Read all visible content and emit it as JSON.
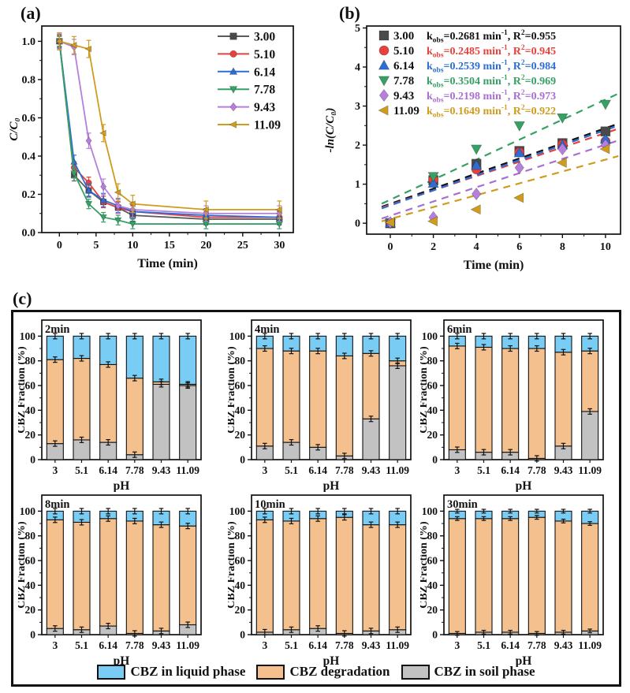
{
  "panels": {
    "a": {
      "label": "(a)"
    },
    "b": {
      "label": "(b)"
    },
    "c": {
      "label": "(c)"
    }
  },
  "legend": {
    "items": [
      {
        "label": "CBZ in liquid phase",
        "color": "#79CCF3"
      },
      {
        "label": "CBZ degradation",
        "color": "#F4C08D"
      },
      {
        "label": "CBZ in soil phase",
        "color": "#C2C2C2"
      }
    ]
  },
  "chart_data": [
    {
      "id": "panel_a",
      "type": "line",
      "xlabel": "Time (min)",
      "ylabel": "C/C₀",
      "xlim": [
        -2.4,
        31.9
      ],
      "ylim": [
        0,
        1.08
      ],
      "xticks": [
        0,
        5,
        10,
        15,
        20,
        25,
        30
      ],
      "xtick_labels": [
        "0",
        "5",
        "10",
        "15",
        "20",
        "25",
        "30"
      ],
      "yticks": [
        0.0,
        0.2,
        0.4,
        0.6,
        0.8,
        1.0
      ],
      "ytick_labels": [
        "0.0",
        "0.2",
        "0.4",
        "0.6",
        "0.8",
        "1.0"
      ],
      "legend_position": "top-right",
      "x": [
        0,
        2,
        4,
        6,
        8,
        10,
        20,
        30
      ],
      "series": [
        {
          "name": "3.00",
          "marker": "square",
          "color": "#4a4a4a",
          "line_color": "#5b5b5b",
          "err": 0.03,
          "values": [
            1.0,
            0.3,
            0.22,
            0.16,
            0.13,
            0.09,
            0.07,
            0.07
          ]
        },
        {
          "name": "5.10",
          "marker": "circle",
          "color": "#e8403c",
          "line_color": "#e8403c",
          "err": 0.03,
          "values": [
            1.0,
            0.34,
            0.26,
            0.16,
            0.13,
            0.11,
            0.08,
            0.08
          ]
        },
        {
          "name": "6.14",
          "marker": "triangle-up",
          "color": "#2e6ed4",
          "line_color": "#2e6ed4",
          "err": 0.035,
          "values": [
            1.0,
            0.37,
            0.22,
            0.17,
            0.14,
            0.11,
            0.09,
            0.08
          ]
        },
        {
          "name": "7.78",
          "marker": "triangle-down",
          "color": "#37a065",
          "line_color": "#37a065",
          "err": 0.025,
          "values": [
            1.0,
            0.31,
            0.15,
            0.08,
            0.065,
            0.045,
            0.045,
            0.045
          ]
        },
        {
          "name": "9.43",
          "marker": "diamond",
          "color": "#b77fdd",
          "line_color": "#b77fdd",
          "err": 0.04,
          "values": [
            1.0,
            0.97,
            0.48,
            0.24,
            0.14,
            0.12,
            0.1,
            0.1
          ]
        },
        {
          "name": "11.09",
          "marker": "triangle-left",
          "color": "#cf9c1e",
          "line_color": "#cf9c1e",
          "err": 0.045,
          "values": [
            1.0,
            0.98,
            0.96,
            0.52,
            0.21,
            0.15,
            0.12,
            0.12
          ]
        }
      ]
    },
    {
      "id": "panel_b",
      "type": "scatter",
      "xlabel": "Time (min)",
      "ylabel": "-ln(C/C₀)",
      "xlim": [
        -1.1,
        10.7
      ],
      "ylim": [
        -0.28,
        5.05
      ],
      "xticks": [
        0,
        2,
        4,
        6,
        8,
        10
      ],
      "xtick_labels": [
        "0",
        "2",
        "4",
        "6",
        "8",
        "10"
      ],
      "yticks": [
        0,
        1,
        2,
        3,
        4,
        5
      ],
      "ytick_labels": [
        "0",
        "1",
        "2",
        "3",
        "4",
        "5"
      ],
      "legend_position": "top-left",
      "x": [
        0,
        2,
        4,
        6,
        8,
        10
      ],
      "series": [
        {
          "name": "3.00",
          "marker": "square",
          "color": "#4a4a4a",
          "accent": "#111111",
          "kobs": "0.2681",
          "r2": "0.955",
          "values": [
            0,
            1.1,
            1.52,
            1.85,
            2.05,
            2.35
          ],
          "fit": [
            [
              -0.4,
              0.42
            ],
            [
              10.6,
              2.55
            ]
          ]
        },
        {
          "name": "5.10",
          "marker": "circle",
          "color": "#e8403c",
          "accent": "#e8403c",
          "kobs": "0.2485",
          "r2": "0.945",
          "values": [
            0,
            1.12,
            1.38,
            1.82,
            2.02,
            2.1
          ],
          "fit": [
            [
              -0.4,
              0.4
            ],
            [
              10.6,
              2.42
            ]
          ]
        },
        {
          "name": "6.14",
          "marker": "triangle-up",
          "color": "#2e6ed4",
          "accent": "#2e6ed4",
          "kobs": "0.2539",
          "r2": "0.984",
          "values": [
            0,
            1.02,
            1.48,
            1.8,
            2.0,
            2.15
          ],
          "fit": [
            [
              -0.4,
              0.38
            ],
            [
              10.6,
              2.5
            ]
          ]
        },
        {
          "name": "7.78",
          "marker": "triangle-down",
          "color": "#37a065",
          "accent": "#37a065",
          "kobs": "0.3504",
          "r2": "0.969",
          "values": [
            0,
            1.2,
            1.9,
            2.5,
            2.7,
            3.05
          ],
          "fit": [
            [
              -0.4,
              0.5
            ],
            [
              10.6,
              3.32
            ]
          ]
        },
        {
          "name": "9.43",
          "marker": "diamond",
          "color": "#b77fdd",
          "accent": "#a86fd0",
          "kobs": "0.2198",
          "r2": "0.973",
          "values": [
            0.02,
            0.15,
            0.75,
            1.42,
            1.9,
            2.0
          ],
          "fit": [
            [
              -0.4,
              0.12
            ],
            [
              10.6,
              2.12
            ]
          ]
        },
        {
          "name": "11.09",
          "marker": "triangle-left",
          "color": "#cf9c1e",
          "accent": "#cf9c1e",
          "kobs": "0.1649",
          "r2": "0.922",
          "values": [
            0.02,
            0.05,
            0.35,
            0.65,
            1.55,
            1.9
          ],
          "fit": [
            [
              -0.4,
              0.05
            ],
            [
              10.6,
              1.72
            ]
          ]
        }
      ]
    },
    {
      "id": "panel_c_2min",
      "type": "bar",
      "title": "2min",
      "xlabel": "pH",
      "ylabel": "CBZ Fraction (%)",
      "categories": [
        "3",
        "5.1",
        "6.14",
        "7.78",
        "9.43",
        "11.09"
      ],
      "ylim": [
        0,
        113
      ],
      "yticks": [
        0,
        20,
        40,
        60,
        80,
        100
      ],
      "ytick_labels": [
        "0",
        "20",
        "40",
        "60",
        "80",
        "100"
      ],
      "err": 2.2,
      "series": [
        {
          "name": "CBZ in soil phase",
          "color": "#C2C2C2",
          "values": [
            13,
            16,
            14,
            4,
            61,
            60
          ]
        },
        {
          "name": "CBZ degradation",
          "color": "#F4C08D",
          "values": [
            68,
            66,
            63,
            62,
            2,
            1
          ]
        },
        {
          "name": "CBZ in liquid phase",
          "color": "#79CCF3",
          "values": [
            19,
            18,
            23,
            34,
            37,
            39
          ]
        }
      ]
    },
    {
      "id": "panel_c_4min",
      "type": "bar",
      "title": "4min",
      "xlabel": "pH",
      "ylabel": "CBZ Fraction (%)",
      "categories": [
        "3",
        "5.1",
        "6.14",
        "7.78",
        "9.43",
        "11.09"
      ],
      "ylim": [
        0,
        113
      ],
      "yticks": [
        0,
        20,
        40,
        60,
        80,
        100
      ],
      "ytick_labels": [
        "0",
        "20",
        "40",
        "60",
        "80",
        "100"
      ],
      "err": 2.2,
      "series": [
        {
          "name": "CBZ in soil phase",
          "color": "#C2C2C2",
          "values": [
            11,
            14,
            10,
            3,
            33,
            76
          ]
        },
        {
          "name": "CBZ degradation",
          "color": "#F4C08D",
          "values": [
            79,
            74,
            78,
            81,
            53,
            4
          ]
        },
        {
          "name": "CBZ in liquid phase",
          "color": "#79CCF3",
          "values": [
            10,
            12,
            12,
            16,
            14,
            20
          ]
        }
      ]
    },
    {
      "id": "panel_c_6min",
      "type": "bar",
      "title": "6min",
      "xlabel": "pH",
      "ylabel": "CBZ Fraction (%)",
      "categories": [
        "3",
        "5.1",
        "6.14",
        "7.78",
        "9.43",
        "11.09"
      ],
      "ylim": [
        0,
        113
      ],
      "yticks": [
        0,
        20,
        40,
        60,
        80,
        100
      ],
      "ytick_labels": [
        "0",
        "20",
        "40",
        "60",
        "80",
        "100"
      ],
      "err": 2.2,
      "series": [
        {
          "name": "CBZ in soil phase",
          "color": "#C2C2C2",
          "values": [
            8,
            6,
            6,
            1,
            11,
            39
          ]
        },
        {
          "name": "CBZ degradation",
          "color": "#F4C08D",
          "values": [
            84,
            85,
            84,
            89,
            76,
            49
          ]
        },
        {
          "name": "CBZ in liquid phase",
          "color": "#79CCF3",
          "values": [
            8,
            9,
            10,
            10,
            13,
            12
          ]
        }
      ]
    },
    {
      "id": "panel_c_8min",
      "type": "bar",
      "title": "8min",
      "xlabel": "pH",
      "ylabel": "CBZ Fraction (%)",
      "categories": [
        "3",
        "5.1",
        "6.14",
        "7.78",
        "9.43",
        "11.09"
      ],
      "ylim": [
        0,
        113
      ],
      "yticks": [
        0,
        20,
        40,
        60,
        80,
        100
      ],
      "ytick_labels": [
        "0",
        "20",
        "40",
        "60",
        "80",
        "100"
      ],
      "err": 2.2,
      "series": [
        {
          "name": "CBZ in soil phase",
          "color": "#C2C2C2",
          "values": [
            5,
            4,
            7,
            1,
            3,
            8
          ]
        },
        {
          "name": "CBZ degradation",
          "color": "#F4C08D",
          "values": [
            88,
            87,
            87,
            91,
            86,
            80
          ]
        },
        {
          "name": "CBZ in liquid phase",
          "color": "#79CCF3",
          "values": [
            7,
            9,
            6,
            8,
            11,
            12
          ]
        }
      ]
    },
    {
      "id": "panel_c_10min",
      "type": "bar",
      "title": "10min",
      "xlabel": "pH",
      "ylabel": "CBZ Fraction (%)",
      "categories": [
        "3",
        "5.1",
        "6.14",
        "7.78",
        "9.43",
        "11.09"
      ],
      "ylim": [
        0,
        113
      ],
      "yticks": [
        0,
        20,
        40,
        60,
        80,
        100
      ],
      "ytick_labels": [
        "0",
        "20",
        "40",
        "60",
        "80",
        "100"
      ],
      "err": 2.2,
      "series": [
        {
          "name": "CBZ in soil phase",
          "color": "#C2C2C2",
          "values": [
            2,
            4,
            5,
            1,
            3,
            4
          ]
        },
        {
          "name": "CBZ degradation",
          "color": "#F4C08D",
          "values": [
            91,
            88,
            89,
            94,
            86,
            85
          ]
        },
        {
          "name": "CBZ in liquid phase",
          "color": "#79CCF3",
          "values": [
            7,
            8,
            6,
            5,
            11,
            11
          ]
        }
      ]
    },
    {
      "id": "panel_c_30min",
      "type": "bar",
      "title": "30min",
      "xlabel": "pH",
      "ylabel": "CBZ Fraction (%)",
      "categories": [
        "3",
        "5.1",
        "6.14",
        "7.78",
        "9.43",
        "11.09"
      ],
      "ylim": [
        0,
        113
      ],
      "yticks": [
        0,
        20,
        40,
        60,
        80,
        100
      ],
      "ytick_labels": [
        "0",
        "20",
        "40",
        "60",
        "80",
        "100"
      ],
      "err": 1.5,
      "series": [
        {
          "name": "CBZ in soil phase",
          "color": "#C2C2C2",
          "values": [
            1,
            2,
            2,
            1,
            2,
            3
          ]
        },
        {
          "name": "CBZ degradation",
          "color": "#F4C08D",
          "values": [
            93,
            92,
            92,
            94,
            90,
            87
          ]
        },
        {
          "name": "CBZ in liquid phase",
          "color": "#79CCF3",
          "values": [
            6,
            6,
            6,
            5,
            8,
            10
          ]
        }
      ]
    }
  ]
}
